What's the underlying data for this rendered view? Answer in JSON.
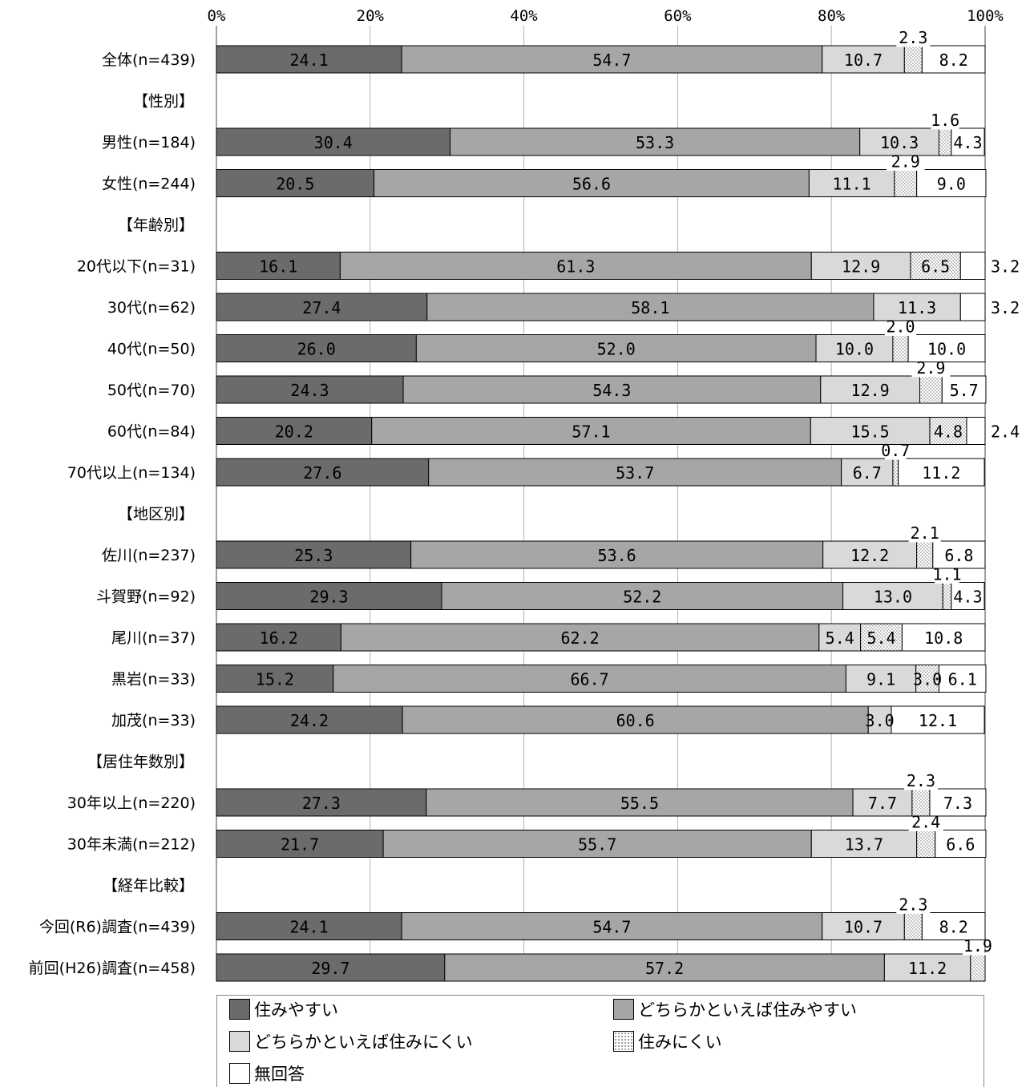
{
  "chart_data": {
    "type": "bar",
    "orientation": "horizontal",
    "stacked": true,
    "xlim": [
      0,
      100
    ],
    "x_ticks": [
      "0%",
      "20%",
      "40%",
      "60%",
      "80%",
      "100%"
    ],
    "grid": true,
    "legend_position": "bottom",
    "series": [
      {
        "name": "住みやすい",
        "color": "#6b6b6b"
      },
      {
        "name": "どちらかといえば住みやすい",
        "color": "#a6a6a6"
      },
      {
        "name": "どちらかといえば住みにくい",
        "color": "#d9d9d9"
      },
      {
        "name": "住みにくい",
        "color": "#ffffff",
        "pattern": "dots"
      },
      {
        "name": "無回答",
        "color": "#ffffff"
      }
    ],
    "rows": [
      {
        "type": "bar",
        "label": "全体(n=439)",
        "values": [
          24.1,
          54.7,
          10.7,
          2.3,
          8.2
        ],
        "labels": [
          "24.1",
          "54.7",
          "10.7",
          "2.3",
          "8.2"
        ]
      },
      {
        "type": "group",
        "label": "【性別】"
      },
      {
        "type": "bar",
        "label": "男性(n=184)",
        "values": [
          30.4,
          53.3,
          10.3,
          1.6,
          4.3
        ],
        "labels": [
          "30.4",
          "53.3",
          "10.3",
          "1.6",
          "4.3"
        ]
      },
      {
        "type": "bar",
        "label": "女性(n=244)",
        "values": [
          20.5,
          56.6,
          11.1,
          2.9,
          9.0
        ],
        "labels": [
          "20.5",
          "56.6",
          "11.1",
          "2.9",
          "9.0"
        ]
      },
      {
        "type": "group",
        "label": "【年齢別】"
      },
      {
        "type": "bar",
        "label": "20代以下(n=31)",
        "values": [
          16.1,
          61.3,
          12.9,
          6.5,
          3.2
        ],
        "labels": [
          "16.1",
          "61.3",
          "12.9",
          "6.5",
          "3.2"
        ]
      },
      {
        "type": "bar",
        "label": "30代(n=62)",
        "values": [
          27.4,
          58.1,
          11.3,
          0,
          3.2
        ],
        "labels": [
          "27.4",
          "58.1",
          "11.3",
          "",
          "3.2"
        ]
      },
      {
        "type": "bar",
        "label": "40代(n=50)",
        "values": [
          26.0,
          52.0,
          10.0,
          2.0,
          10.0
        ],
        "labels": [
          "26.0",
          "52.0",
          "10.0",
          "2.0",
          "10.0"
        ]
      },
      {
        "type": "bar",
        "label": "50代(n=70)",
        "values": [
          24.3,
          54.3,
          12.9,
          2.9,
          5.7
        ],
        "labels": [
          "24.3",
          "54.3",
          "12.9",
          "2.9",
          "5.7"
        ]
      },
      {
        "type": "bar",
        "label": "60代(n=84)",
        "values": [
          20.2,
          57.1,
          15.5,
          4.8,
          2.4
        ],
        "labels": [
          "20.2",
          "57.1",
          "15.5",
          "4.8",
          "2.4"
        ]
      },
      {
        "type": "bar",
        "label": "70代以上(n=134)",
        "values": [
          27.6,
          53.7,
          6.7,
          0.7,
          11.2
        ],
        "labels": [
          "27.6",
          "53.7",
          "6.7",
          "0.7",
          "11.2"
        ]
      },
      {
        "type": "group",
        "label": "【地区別】"
      },
      {
        "type": "bar",
        "label": "佐川(n=237)",
        "values": [
          25.3,
          53.6,
          12.2,
          2.1,
          6.8
        ],
        "labels": [
          "25.3",
          "53.6",
          "12.2",
          "2.1",
          "6.8"
        ]
      },
      {
        "type": "bar",
        "label": "斗賀野(n=92)",
        "values": [
          29.3,
          52.2,
          13.0,
          1.1,
          4.3
        ],
        "labels": [
          "29.3",
          "52.2",
          "13.0",
          "1.1",
          "4.3"
        ]
      },
      {
        "type": "bar",
        "label": "尾川(n=37)",
        "values": [
          16.2,
          62.2,
          5.4,
          5.4,
          10.8
        ],
        "labels": [
          "16.2",
          "62.2",
          "5.4",
          "5.4",
          "10.8"
        ]
      },
      {
        "type": "bar",
        "label": "黒岩(n=33)",
        "values": [
          15.2,
          66.7,
          9.1,
          3.0,
          6.1
        ],
        "labels": [
          "15.2",
          "66.7",
          "9.1",
          "3.0",
          "6.1"
        ]
      },
      {
        "type": "bar",
        "label": "加茂(n=33)",
        "values": [
          24.2,
          60.6,
          3.0,
          0,
          12.1
        ],
        "labels": [
          "24.2",
          "60.6",
          "3.0",
          "",
          "12.1"
        ]
      },
      {
        "type": "group",
        "label": "【居住年数別】"
      },
      {
        "type": "bar",
        "label": "30年以上(n=220)",
        "values": [
          27.3,
          55.5,
          7.7,
          2.3,
          7.3
        ],
        "labels": [
          "27.3",
          "55.5",
          "7.7",
          "2.3",
          "7.3"
        ]
      },
      {
        "type": "bar",
        "label": "30年未満(n=212)",
        "values": [
          21.7,
          55.7,
          13.7,
          2.4,
          6.6
        ],
        "labels": [
          "21.7",
          "55.7",
          "13.7",
          "2.4",
          "6.6"
        ]
      },
      {
        "type": "group",
        "label": "【経年比較】"
      },
      {
        "type": "bar",
        "label": "今回(R6)調査(n=439)",
        "values": [
          24.1,
          54.7,
          10.7,
          2.3,
          8.2
        ],
        "labels": [
          "24.1",
          "54.7",
          "10.7",
          "2.3",
          "8.2"
        ]
      },
      {
        "type": "bar",
        "label": "前回(H26)調査(n=458)",
        "values": [
          29.7,
          57.2,
          11.2,
          1.9,
          0
        ],
        "labels": [
          "29.7",
          "57.2",
          "11.2",
          "1.9",
          ""
        ]
      }
    ]
  }
}
